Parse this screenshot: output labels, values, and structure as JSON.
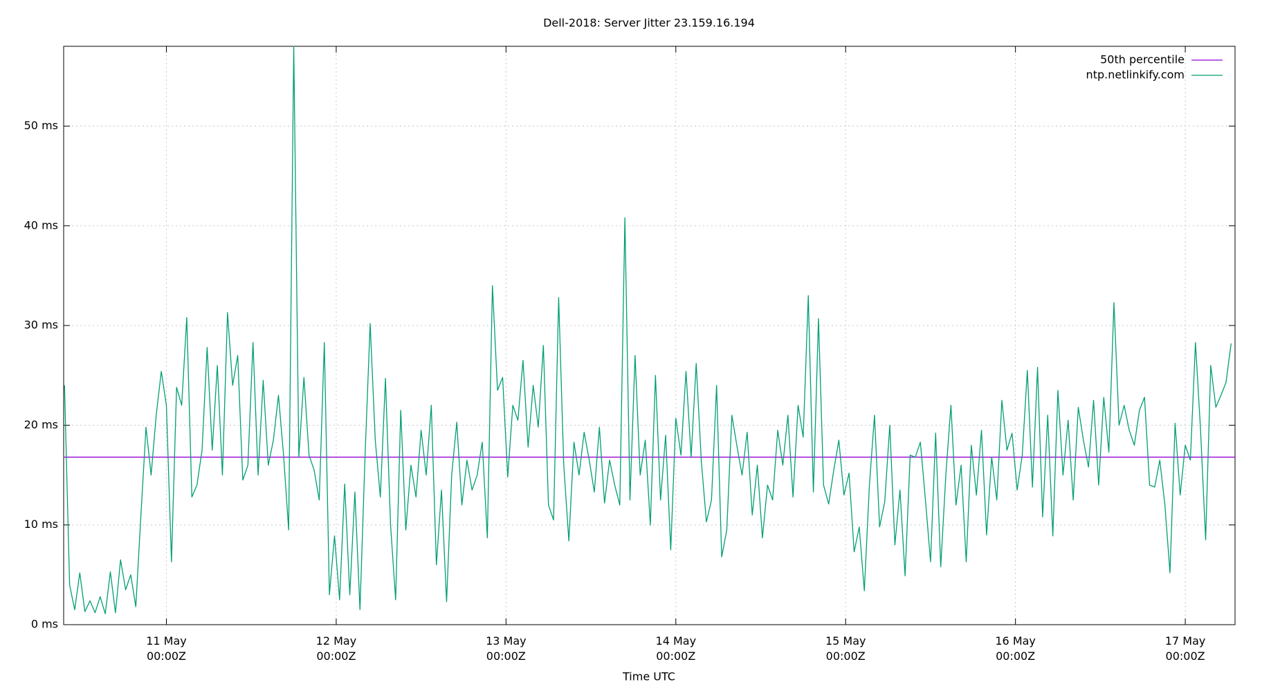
{
  "chart_data": {
    "type": "line",
    "title": "Dell-2018: Server Jitter 23.159.16.194",
    "x_label": "Time UTC",
    "xlim": [
      10.395,
      17.293
    ],
    "xticks": [
      {
        "value": 11,
        "label": "11 May\n00:00Z"
      },
      {
        "value": 12,
        "label": "12 May\n00:00Z"
      },
      {
        "value": 13,
        "label": "13 May\n00:00Z"
      },
      {
        "value": 14,
        "label": "14 May\n00:00Z"
      },
      {
        "value": 15,
        "label": "15 May\n00:00Z"
      },
      {
        "value": 16,
        "label": "16 May\n00:00Z"
      },
      {
        "value": 17,
        "label": "17 May\n00:00Z"
      }
    ],
    "ylim": [
      0,
      58
    ],
    "yticks": [
      {
        "value": 0,
        "label": "0 ms"
      },
      {
        "value": 10,
        "label": "10 ms"
      },
      {
        "value": 20,
        "label": "20 ms"
      },
      {
        "value": 30,
        "label": "30 ms"
      },
      {
        "value": 40,
        "label": "40 ms"
      },
      {
        "value": 50,
        "label": "50 ms"
      }
    ],
    "grid": true,
    "legend": "top-right",
    "hlines": [
      {
        "name": "50th percentile",
        "color": "#9400d3",
        "value": 16.8
      }
    ],
    "x": [
      10.4,
      10.43,
      10.46,
      10.49,
      10.52,
      10.55,
      10.58,
      10.61,
      10.64,
      10.67,
      10.7,
      10.73,
      10.76,
      10.79,
      10.82,
      10.85,
      10.88,
      10.91,
      10.94,
      10.97,
      11,
      11.03,
      11.06,
      11.09,
      11.12,
      11.15,
      11.18,
      11.21,
      11.24,
      11.27,
      11.3,
      11.33,
      11.36,
      11.39,
      11.42,
      11.45,
      11.48,
      11.51,
      11.54,
      11.57,
      11.6,
      11.63,
      11.66,
      11.69,
      11.72,
      11.75,
      11.78,
      11.81,
      11.84,
      11.87,
      11.9,
      11.93,
      11.96,
      11.99,
      12.02,
      12.05,
      12.08,
      12.11,
      12.14,
      12.17,
      12.2,
      12.23,
      12.26,
      12.29,
      12.32,
      12.35,
      12.38,
      12.41,
      12.44,
      12.47,
      12.5,
      12.53,
      12.56,
      12.59,
      12.62,
      12.65,
      12.68,
      12.71,
      12.74,
      12.77,
      12.8,
      12.83,
      12.86,
      12.89,
      12.92,
      12.95,
      12.98,
      13.01,
      13.04,
      13.07,
      13.1,
      13.13,
      13.16,
      13.19,
      13.22,
      13.25,
      13.28,
      13.31,
      13.34,
      13.37,
      13.4,
      13.43,
      13.46,
      13.49,
      13.52,
      13.55,
      13.58,
      13.61,
      13.64,
      13.67,
      13.7,
      13.73,
      13.76,
      13.79,
      13.82,
      13.85,
      13.88,
      13.91,
      13.94,
      13.97,
      14,
      14.03,
      14.06,
      14.09,
      14.12,
      14.15,
      14.18,
      14.21,
      14.24,
      14.27,
      14.3,
      14.33,
      14.36,
      14.39,
      14.42,
      14.45,
      14.48,
      14.51,
      14.54,
      14.57,
      14.6,
      14.63,
      14.66,
      14.69,
      14.72,
      14.75,
      14.78,
      14.81,
      14.84,
      14.87,
      14.9,
      14.93,
      14.96,
      14.99,
      15.02,
      15.05,
      15.08,
      15.11,
      15.14,
      15.17,
      15.2,
      15.23,
      15.26,
      15.29,
      15.32,
      15.35,
      15.38,
      15.41,
      15.44,
      15.47,
      15.5,
      15.53,
      15.56,
      15.59,
      15.62,
      15.65,
      15.68,
      15.71,
      15.74,
      15.77,
      15.8,
      15.83,
      15.86,
      15.89,
      15.92,
      15.95,
      15.98,
      16.01,
      16.04,
      16.07,
      16.1,
      16.13,
      16.16,
      16.19,
      16.22,
      16.25,
      16.28,
      16.31,
      16.34,
      16.37,
      16.4,
      16.43,
      16.46,
      16.49,
      16.52,
      16.55,
      16.58,
      16.61,
      16.64,
      16.67,
      16.7,
      16.73,
      16.76,
      16.79,
      16.82,
      16.85,
      16.88,
      16.91,
      16.94,
      16.97,
      17,
      17.03,
      17.06,
      17.09,
      17.12,
      17.15,
      17.18,
      17.21,
      17.24,
      17.27
    ],
    "series": [
      {
        "name": "ntp.netlinkify.com",
        "color": "#009e73",
        "values": [
          24,
          4,
          1.5,
          5.2,
          1.3,
          2.4,
          1.2,
          2.8,
          1.1,
          5.3,
          1.2,
          6.5,
          3.5,
          5,
          1.8,
          11,
          19.8,
          15,
          21,
          25.4,
          22,
          6.3,
          23.8,
          22,
          30.8,
          12.8,
          14,
          17.5,
          27.8,
          17.5,
          26,
          15,
          31.3,
          24,
          27,
          14.5,
          16,
          28.3,
          15,
          24.5,
          16,
          18.5,
          23,
          17,
          9.5,
          58,
          16.8,
          24.8,
          17,
          15.5,
          12.5,
          28.3,
          3,
          8.9,
          2.5,
          14.1,
          3,
          13.3,
          1.5,
          17,
          30.2,
          18.5,
          12.8,
          24.7,
          10,
          2.5,
          21.5,
          9.5,
          16,
          12.8,
          19.5,
          15,
          22,
          6,
          13.5,
          2.3,
          15,
          20.3,
          12,
          16.5,
          13.5,
          15,
          18.3,
          8.7,
          34,
          23.5,
          24.8,
          14.8,
          22,
          20.5,
          26.5,
          17.8,
          24,
          19.8,
          28,
          12,
          10.5,
          32.8,
          16,
          8.4,
          18.3,
          15,
          19.3,
          16.5,
          13.3,
          19.8,
          12.2,
          16.5,
          14,
          12,
          40.8,
          12.5,
          27,
          15,
          18.5,
          10,
          25,
          12.5,
          19,
          7.5,
          20.7,
          17,
          25.4,
          16.8,
          26.2,
          16.4,
          10.3,
          12.5,
          24,
          6.8,
          9.5,
          21,
          17.9,
          15,
          19.3,
          11,
          16,
          8.7,
          14,
          12.5,
          19.5,
          16,
          21,
          12.8,
          22,
          18.8,
          33,
          13.3,
          30.7,
          14,
          12.1,
          15.5,
          18.5,
          13,
          15.2,
          7.3,
          9.8,
          3.4,
          14,
          21,
          9.8,
          12.3,
          20,
          8,
          13.5,
          4.9,
          17,
          16.8,
          18.3,
          12.5,
          6.3,
          19.2,
          5.8,
          15,
          22,
          12,
          16,
          6.3,
          18,
          13,
          19.5,
          9,
          16.8,
          12.5,
          22.5,
          17.5,
          19.2,
          13.5,
          17,
          25.5,
          13.8,
          25.8,
          10.8,
          21,
          8.9,
          23.5,
          15,
          20.5,
          12.5,
          21.8,
          18.5,
          15.8,
          22.5,
          14,
          22.8,
          17.3,
          32.3,
          20,
          22,
          19.5,
          18,
          21.5,
          22.8,
          14,
          13.8,
          16.5,
          12,
          5.2,
          20.2,
          13,
          18,
          16.5,
          28.3,
          19.5,
          8.5,
          26,
          21.8,
          23,
          24.3,
          28.2
        ]
      }
    ]
  }
}
